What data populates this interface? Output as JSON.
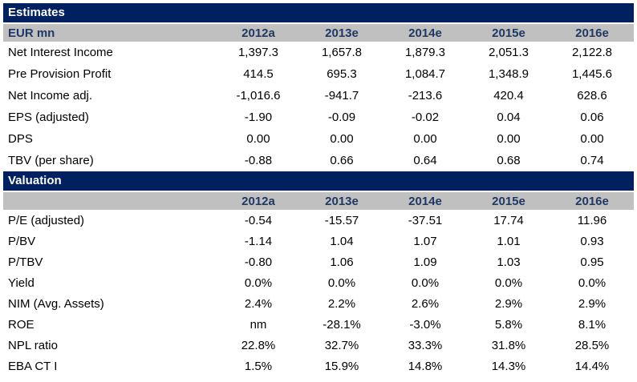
{
  "colors": {
    "section_bar_bg": "#002060",
    "section_bar_text": "#ffffff",
    "column_header_bg": "#C0C0C0",
    "column_header_text": "#1F3864",
    "body_text": "#000000",
    "page_bg": "#ffffff"
  },
  "estimates": {
    "title": "Estimates",
    "unit_label": "EUR mn",
    "columns": [
      "2012a",
      "2013e",
      "2014e",
      "2015e",
      "2016e"
    ],
    "rows": [
      {
        "label": "Net Interest Income",
        "values": [
          "1,397.3",
          "1,657.8",
          "1,879.3",
          "2,051.3",
          "2,122.8"
        ]
      },
      {
        "label": "Pre Provision Profit",
        "values": [
          "414.5",
          "695.3",
          "1,084.7",
          "1,348.9",
          "1,445.6"
        ]
      },
      {
        "label": "Net Income adj.",
        "values": [
          "-1,016.6",
          "-941.7",
          "-213.6",
          "420.4",
          "628.6"
        ]
      },
      {
        "label": "EPS (adjusted)",
        "values": [
          "-1.90",
          "-0.09",
          "-0.02",
          "0.04",
          "0.06"
        ]
      },
      {
        "label": "DPS",
        "values": [
          "0.00",
          "0.00",
          "0.00",
          "0.00",
          "0.00"
        ]
      },
      {
        "label": "TBV (per share)",
        "values": [
          "-0.88",
          "0.66",
          "0.64",
          "0.68",
          "0.74"
        ]
      }
    ]
  },
  "valuation": {
    "title": "Valuation",
    "unit_label": "",
    "columns": [
      "2012a",
      "2013e",
      "2014e",
      "2015e",
      "2016e"
    ],
    "rows": [
      {
        "label": "P/E (adjusted)",
        "values": [
          "-0.54",
          "-15.57",
          "-37.51",
          "17.74",
          "11.96"
        ]
      },
      {
        "label": "P/BV",
        "values": [
          "-1.14",
          "1.04",
          "1.07",
          "1.01",
          "0.93"
        ]
      },
      {
        "label": "P/TBV",
        "values": [
          "-0.80",
          "1.06",
          "1.09",
          "1.03",
          "0.95"
        ]
      },
      {
        "label": "Yield",
        "values": [
          "0.0%",
          "0.0%",
          "0.0%",
          "0.0%",
          "0.0%"
        ]
      },
      {
        "label": "NIM (Avg. Assets)",
        "values": [
          "2.4%",
          "2.2%",
          "2.6%",
          "2.9%",
          "2.9%"
        ]
      },
      {
        "label": "ROE",
        "values": [
          "nm",
          "-28.1%",
          "-3.0%",
          "5.8%",
          "8.1%"
        ]
      },
      {
        "label": "NPL ratio",
        "values": [
          "22.8%",
          "32.7%",
          "33.3%",
          "31.8%",
          "28.5%"
        ]
      },
      {
        "label": "EBA CT I",
        "values": [
          "1.5%",
          "15.9%",
          "14.8%",
          "14.3%",
          "14.4%"
        ]
      }
    ]
  }
}
